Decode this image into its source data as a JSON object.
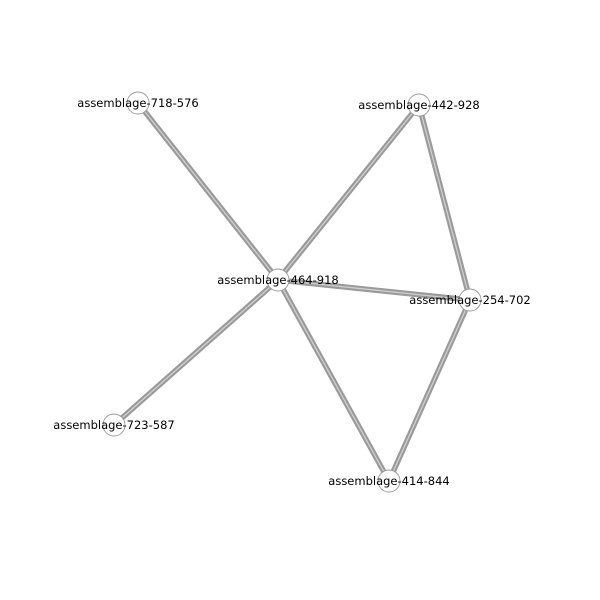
{
  "graph": {
    "nodes": [
      {
        "id": "n718",
        "label": "assemblage-718-576"
      },
      {
        "id": "n442",
        "label": "assemblage-442-928"
      },
      {
        "id": "n464",
        "label": "assemblage-464-918"
      },
      {
        "id": "n254",
        "label": "assemblage-254-702"
      },
      {
        "id": "n723",
        "label": "assemblage-723-587"
      },
      {
        "id": "n414",
        "label": "assemblage-414-844"
      }
    ],
    "edges": [
      {
        "source": "n718",
        "target": "n464"
      },
      {
        "source": "n442",
        "target": "n464"
      },
      {
        "source": "n442",
        "target": "n254"
      },
      {
        "source": "n464",
        "target": "n254"
      },
      {
        "source": "n464",
        "target": "n723"
      },
      {
        "source": "n464",
        "target": "n414"
      },
      {
        "source": "n254",
        "target": "n414"
      }
    ]
  },
  "colors": {
    "edge": "#9a9a9a",
    "edge_highlight": "#cfcfcf",
    "node_fill": "#ffffff",
    "node_stroke": "#9a9a9a",
    "label": "#000000",
    "background": "#ffffff"
  }
}
